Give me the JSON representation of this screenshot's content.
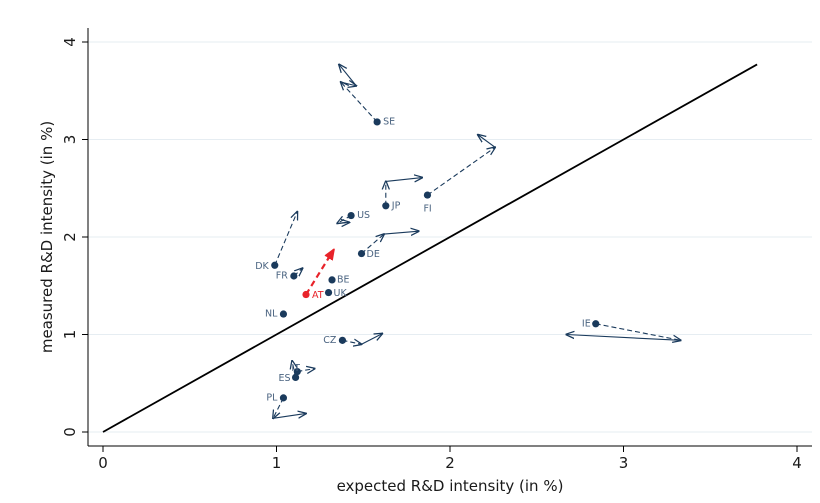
{
  "chart_data": {
    "type": "scatter",
    "xlabel": "expected R&D intensity (in %)",
    "ylabel": "measured R&D intensity (in %)",
    "xlim": [
      0,
      4
    ],
    "ylim": [
      0,
      4
    ],
    "xticks": [
      "0",
      "1",
      "2",
      "3",
      "4"
    ],
    "yticks": [
      "0",
      "1",
      "2",
      "3",
      "4"
    ],
    "grid": "horizontal",
    "colors": {
      "marker": "#1a3a5c",
      "highlight": "#e8232a",
      "line": "#000000",
      "grid": "#e6edf2",
      "label": "#4a6380"
    },
    "reference_line": {
      "from": [
        0,
        0
      ],
      "to": [
        3.77,
        3.77
      ]
    },
    "points": [
      {
        "label": "SE",
        "x": 1.58,
        "y": 3.18,
        "arrows": [
          [
            1.58,
            3.18,
            1.37,
            3.59
          ],
          [
            1.37,
            3.59,
            1.46,
            3.55
          ],
          [
            1.46,
            3.55,
            1.36,
            3.77
          ]
        ]
      },
      {
        "label": "FI",
        "x": 1.87,
        "y": 2.43,
        "arrows": [
          [
            1.87,
            2.43,
            2.26,
            2.92
          ],
          [
            2.26,
            2.92,
            2.16,
            3.05
          ]
        ]
      },
      {
        "label": "JP",
        "x": 1.63,
        "y": 2.32,
        "arrows": [
          [
            1.63,
            2.32,
            1.63,
            2.57
          ],
          [
            1.63,
            2.57,
            1.84,
            2.61
          ]
        ]
      },
      {
        "label": "US",
        "x": 1.43,
        "y": 2.22,
        "arrows": [
          [
            1.43,
            2.22,
            1.35,
            2.14
          ],
          [
            1.35,
            2.14,
            1.42,
            2.15
          ]
        ]
      },
      {
        "label": "DK",
        "x": 0.99,
        "y": 1.71,
        "arrows": [
          [
            0.99,
            1.71,
            1.12,
            2.26
          ]
        ]
      },
      {
        "label": "DE",
        "x": 1.49,
        "y": 1.83,
        "arrows": [
          [
            1.49,
            1.83,
            1.62,
            2.03
          ],
          [
            1.62,
            2.03,
            1.82,
            2.06
          ]
        ]
      },
      {
        "label": "FR",
        "x": 1.1,
        "y": 1.6,
        "arrows": [
          [
            1.1,
            1.6,
            1.15,
            1.68
          ]
        ]
      },
      {
        "label": "BE",
        "x": 1.32,
        "y": 1.56,
        "arrows": []
      },
      {
        "label": "UK",
        "x": 1.3,
        "y": 1.43,
        "arrows": []
      },
      {
        "label": "AT",
        "x": 1.17,
        "y": 1.41,
        "highlight": true,
        "arrows": [
          [
            1.17,
            1.41,
            1.33,
            1.87
          ]
        ]
      },
      {
        "label": "NL",
        "x": 1.04,
        "y": 1.21,
        "arrows": []
      },
      {
        "label": "CZ",
        "x": 1.38,
        "y": 0.94,
        "arrows": [
          [
            1.38,
            0.94,
            1.49,
            0.9
          ],
          [
            1.49,
            0.9,
            1.61,
            1.01
          ]
        ]
      },
      {
        "label": "IE",
        "x": 2.84,
        "y": 1.11,
        "arrows": [
          [
            2.84,
            1.11,
            3.33,
            0.94
          ],
          [
            3.33,
            0.94,
            2.67,
            1.0
          ]
        ]
      },
      {
        "label": "IT",
        "x": 1.12,
        "y": 0.62,
        "arrows": [
          [
            1.12,
            0.62,
            1.22,
            0.65
          ]
        ]
      },
      {
        "label": "ES",
        "x": 1.11,
        "y": 0.56,
        "arrows": [
          [
            1.11,
            0.56,
            1.09,
            0.73
          ]
        ]
      },
      {
        "label": "PL",
        "x": 1.04,
        "y": 0.35,
        "arrows": [
          [
            1.04,
            0.35,
            0.98,
            0.14
          ],
          [
            0.98,
            0.14,
            1.17,
            0.19
          ]
        ]
      }
    ]
  }
}
